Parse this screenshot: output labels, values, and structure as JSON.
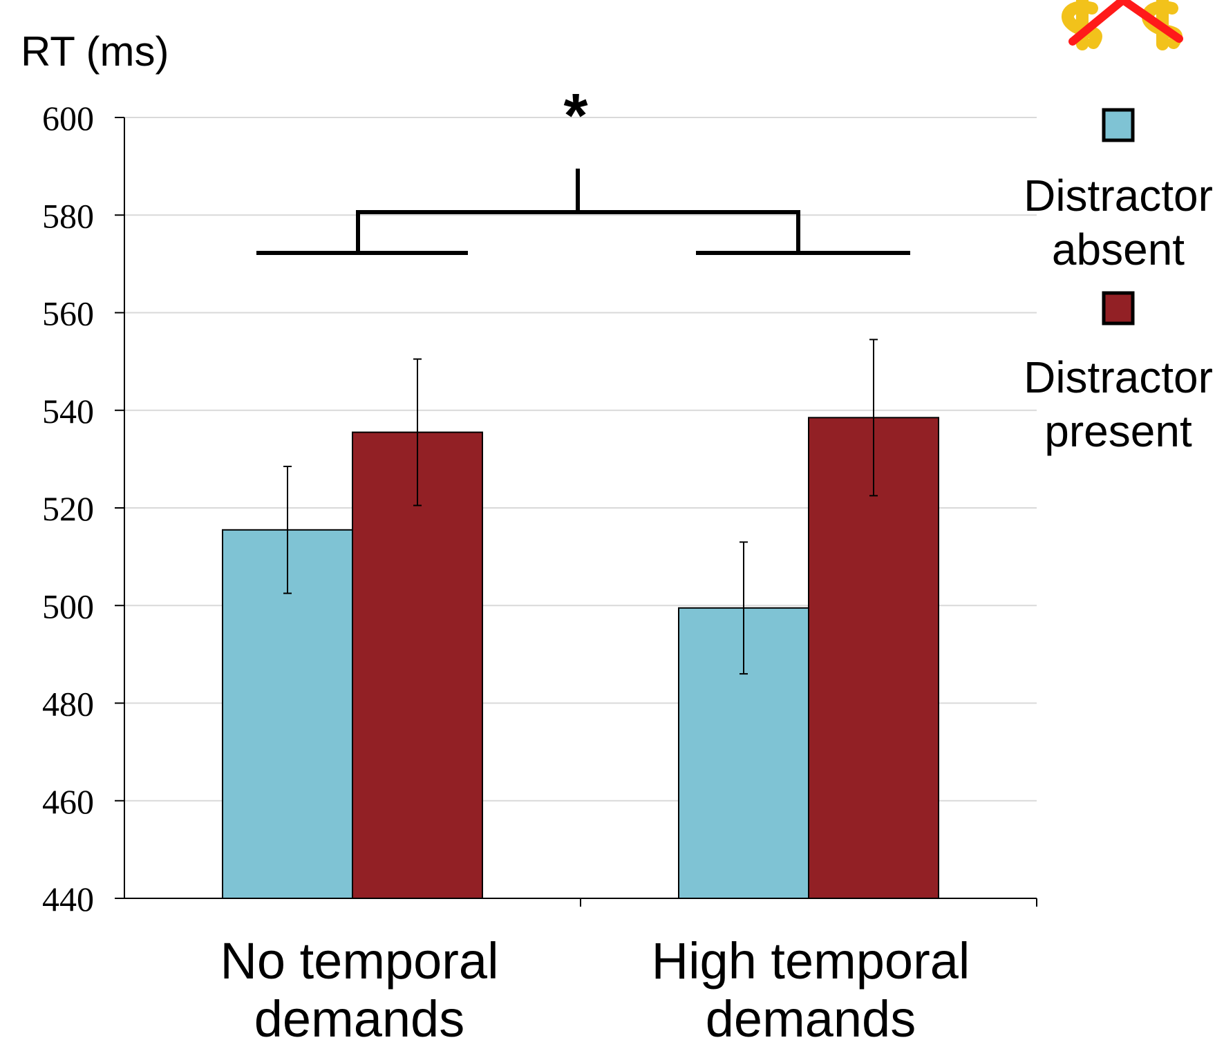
{
  "chart_data": {
    "type": "bar",
    "title": "",
    "ylabel": "RT (ms)",
    "xlabel": "",
    "ylim": [
      440,
      600
    ],
    "yticks": [
      440,
      460,
      480,
      500,
      520,
      540,
      560,
      580,
      600
    ],
    "grid": true,
    "categories": [
      {
        "line1": "No temporal",
        "line2": "demands"
      },
      {
        "line1": "High temporal",
        "line2": "demands"
      }
    ],
    "series": [
      {
        "name": {
          "line1": "Distractor",
          "line2": "absent"
        },
        "color": "#7fc3d4",
        "values": [
          515.5,
          499.5
        ],
        "error": [
          13,
          13.5
        ]
      },
      {
        "name": {
          "line1": "Distractor",
          "line2": "present"
        },
        "color": "#922025",
        "values": [
          535.5,
          538.5
        ],
        "error": [
          15,
          16
        ]
      }
    ],
    "legend_position": "right",
    "significance": {
      "label": "*"
    },
    "corner_icon": "crossed-out-dollar-icon"
  }
}
